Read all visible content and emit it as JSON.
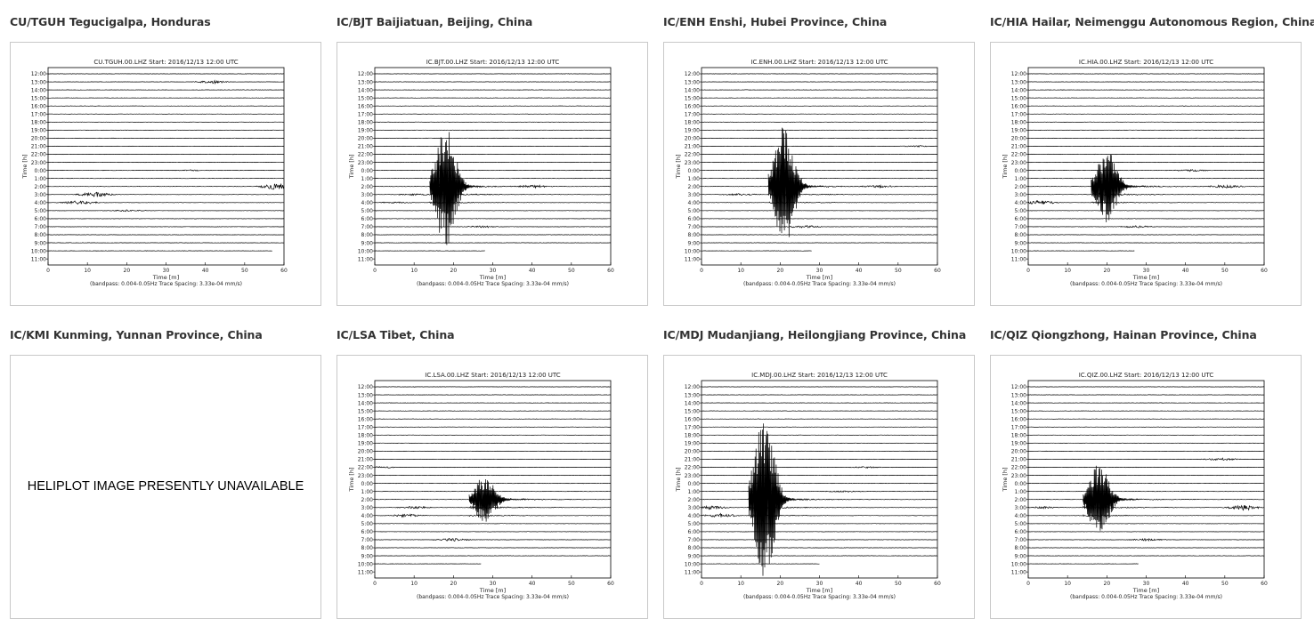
{
  "panels": [
    {
      "title": "CU/TGUH Tegucigalpa, Honduras",
      "available": true,
      "plot_title": "CU.TGUH.00.LHZ  Start: 2016/12/13 12:00 UTC",
      "y_axis_label": "Time [h]",
      "x_axis_label": "Time [m]",
      "footer": "(bandpass: 0.004-0.05Hz  Trace Spacing: 3.33e-04 mm/s)",
      "hour_labels": [
        "12:00",
        "13:00",
        "14:00",
        "15:00",
        "16:00",
        "17:00",
        "18:00",
        "19:00",
        "20:00",
        "21:00",
        "22:00",
        "23:00",
        "0:00",
        "1:00",
        "2:00",
        "3:00",
        "4:00",
        "5:00",
        "6:00",
        "7:00",
        "8:00",
        "9:00",
        "10:00",
        "11:00"
      ],
      "x_ticks": [
        "0",
        "10",
        "20",
        "30",
        "40",
        "50",
        "60"
      ],
      "chart_data": {
        "type": "heliplot",
        "x_range_minutes": [
          0,
          60
        ],
        "rows": 24,
        "data_ends_row": 22,
        "data_ends_minute": 57,
        "bursts": [
          {
            "row": 1,
            "minute": 42,
            "amp": 0.6
          },
          {
            "row": 12,
            "minute": 37,
            "amp": 0.2
          },
          {
            "row": 14,
            "minute": 58,
            "amp": 1.3
          },
          {
            "row": 15,
            "minute": 12,
            "amp": 1.0
          },
          {
            "row": 16,
            "minute": 8,
            "amp": 0.8
          },
          {
            "row": 17,
            "minute": 20,
            "amp": 0.3
          }
        ]
      }
    },
    {
      "title": "IC/BJT Baijiatuan, Beijing, China",
      "available": true,
      "plot_title": "IC.BJT.00.LHZ  Start: 2016/12/13 12:00 UTC",
      "y_axis_label": "Time [h]",
      "x_axis_label": "Time [m]",
      "footer": "(bandpass: 0.004-0.05Hz  Trace Spacing: 3.33e-04 mm/s)",
      "hour_labels": [
        "12:00",
        "13:00",
        "14:00",
        "15:00",
        "16:00",
        "17:00",
        "18:00",
        "19:00",
        "20:00",
        "21:00",
        "22:00",
        "23:00",
        "0:00",
        "1:00",
        "2:00",
        "3:00",
        "4:00",
        "5:00",
        "6:00",
        "7:00",
        "8:00",
        "9:00",
        "10:00",
        "11:00"
      ],
      "x_ticks": [
        "0",
        "10",
        "20",
        "30",
        "40",
        "50",
        "60"
      ],
      "chart_data": {
        "type": "heliplot",
        "x_range_minutes": [
          0,
          60
        ],
        "rows": 24,
        "data_ends_row": 22,
        "data_ends_minute": 28,
        "event": {
          "row": 14,
          "minute": 18,
          "amp": 10
        },
        "bursts": [
          {
            "row": 14,
            "minute": 40,
            "amp": 0.6
          },
          {
            "row": 15,
            "minute": 10,
            "amp": 0.4
          },
          {
            "row": 16,
            "minute": 5,
            "amp": 0.3
          },
          {
            "row": 19,
            "minute": 27,
            "amp": 0.4
          }
        ]
      }
    },
    {
      "title": "IC/ENH Enshi, Hubei Province, China",
      "available": true,
      "plot_title": "IC.ENH.00.LHZ  Start: 2016/12/13 12:00 UTC",
      "y_axis_label": "Time [h]",
      "x_axis_label": "Time [m]",
      "footer": "(bandpass: 0.004-0.05Hz  Trace Spacing: 3.33e-04 mm/s)",
      "hour_labels": [
        "12:00",
        "13:00",
        "14:00",
        "15:00",
        "16:00",
        "17:00",
        "18:00",
        "19:00",
        "20:00",
        "21:00",
        "22:00",
        "23:00",
        "0:00",
        "1:00",
        "2:00",
        "3:00",
        "4:00",
        "5:00",
        "6:00",
        "7:00",
        "8:00",
        "9:00",
        "10:00",
        "11:00"
      ],
      "x_ticks": [
        "0",
        "10",
        "20",
        "30",
        "40",
        "50",
        "60"
      ],
      "chart_data": {
        "type": "heliplot",
        "x_range_minutes": [
          0,
          60
        ],
        "rows": 24,
        "data_ends_row": 22,
        "data_ends_minute": 28,
        "event": {
          "row": 14,
          "minute": 21,
          "amp": 10
        },
        "bursts": [
          {
            "row": 9,
            "minute": 55,
            "amp": 0.3
          },
          {
            "row": 14,
            "minute": 45,
            "amp": 0.5
          },
          {
            "row": 15,
            "minute": 10,
            "amp": 0.4
          },
          {
            "row": 19,
            "minute": 26,
            "amp": 0.5
          }
        ]
      }
    },
    {
      "title": "IC/HIA Hailar, Neimenggu Autonomous Region, China",
      "available": true,
      "plot_title": "IC.HIA.00.LHZ  Start: 2016/12/13 12:00 UTC",
      "y_axis_label": "Time [h]",
      "x_axis_label": "Time [m]",
      "footer": "(bandpass: 0.004-0.05Hz  Trace Spacing: 3.33e-04 mm/s)",
      "hour_labels": [
        "12:00",
        "13:00",
        "14:00",
        "15:00",
        "16:00",
        "17:00",
        "18:00",
        "19:00",
        "20:00",
        "21:00",
        "22:00",
        "23:00",
        "0:00",
        "1:00",
        "2:00",
        "3:00",
        "4:00",
        "5:00",
        "6:00",
        "7:00",
        "8:00",
        "9:00",
        "10:00",
        "11:00"
      ],
      "x_ticks": [
        "0",
        "10",
        "20",
        "30",
        "40",
        "50",
        "60"
      ],
      "chart_data": {
        "type": "heliplot",
        "x_range_minutes": [
          0,
          60
        ],
        "rows": 24,
        "data_ends_row": 22,
        "data_ends_minute": 27,
        "event": {
          "row": 14,
          "minute": 20,
          "amp": 6
        },
        "bursts": [
          {
            "row": 12,
            "minute": 42,
            "amp": 0.4
          },
          {
            "row": 14,
            "minute": 50,
            "amp": 0.6
          },
          {
            "row": 16,
            "minute": 3,
            "amp": 0.8
          },
          {
            "row": 19,
            "minute": 28,
            "amp": 0.4
          }
        ]
      }
    },
    {
      "title": "IC/KMI Kunming, Yunnan Province, China",
      "available": false,
      "unavailable_text": "HELIPLOT IMAGE PRESENTLY UNAVAILABLE"
    },
    {
      "title": "IC/LSA Tibet, China",
      "available": true,
      "plot_title": "IC.LSA.00.LHZ  Start: 2016/12/13 12:00 UTC",
      "y_axis_label": "Time [h]",
      "x_axis_label": "Time [m]",
      "footer": "(bandpass: 0.004-0.05Hz  Trace Spacing: 3.33e-04 mm/s)",
      "hour_labels": [
        "12:00",
        "13:00",
        "14:00",
        "15:00",
        "16:00",
        "17:00",
        "18:00",
        "19:00",
        "20:00",
        "21:00",
        "22:00",
        "23:00",
        "0:00",
        "1:00",
        "2:00",
        "3:00",
        "4:00",
        "5:00",
        "6:00",
        "7:00",
        "8:00",
        "9:00",
        "10:00",
        "11:00"
      ],
      "x_ticks": [
        "0",
        "10",
        "20",
        "30",
        "40",
        "50",
        "60"
      ],
      "chart_data": {
        "type": "heliplot",
        "x_range_minutes": [
          0,
          60
        ],
        "rows": 24,
        "data_ends_row": 22,
        "data_ends_minute": 27,
        "event": {
          "row": 14,
          "minute": 28,
          "amp": 4
        },
        "bursts": [
          {
            "row": 10,
            "minute": 2,
            "amp": 0.3
          },
          {
            "row": 15,
            "minute": 10,
            "amp": 0.5
          },
          {
            "row": 16,
            "minute": 8,
            "amp": 0.6
          },
          {
            "row": 19,
            "minute": 20,
            "amp": 0.6
          }
        ]
      }
    },
    {
      "title": "IC/MDJ Mudanjiang, Heilongjiang Province, China",
      "available": true,
      "plot_title": "IC.MDJ.00.LHZ  Start: 2016/12/13 12:00 UTC",
      "y_axis_label": "Time [h]",
      "x_axis_label": "Time [m]",
      "footer": "(bandpass: 0.004-0.05Hz  Trace Spacing: 3.33e-04 mm/s)",
      "hour_labels": [
        "12:00",
        "13:00",
        "14:00",
        "15:00",
        "16:00",
        "17:00",
        "18:00",
        "19:00",
        "20:00",
        "21:00",
        "22:00",
        "23:00",
        "0:00",
        "1:00",
        "2:00",
        "3:00",
        "4:00",
        "5:00",
        "6:00",
        "7:00",
        "8:00",
        "9:00",
        "10:00",
        "11:00"
      ],
      "x_ticks": [
        "0",
        "10",
        "20",
        "30",
        "40",
        "50",
        "60"
      ],
      "chart_data": {
        "type": "heliplot",
        "x_range_minutes": [
          0,
          60
        ],
        "rows": 24,
        "data_ends_row": 22,
        "data_ends_minute": 30,
        "event": {
          "row": 14,
          "minute": 16,
          "amp": 14
        },
        "bursts": [
          {
            "row": 10,
            "minute": 42,
            "amp": 0.3
          },
          {
            "row": 13,
            "minute": 36,
            "amp": 0.3
          },
          {
            "row": 15,
            "minute": 2,
            "amp": 0.8
          },
          {
            "row": 16,
            "minute": 5,
            "amp": 0.8
          }
        ]
      }
    },
    {
      "title": "IC/QIZ Qiongzhong, Hainan Province, China",
      "available": true,
      "plot_title": "IC.QIZ.00.LHZ  Start: 2016/12/13 12:00 UTC",
      "y_axis_label": "Time [h]",
      "x_axis_label": "Time [m]",
      "footer": "(bandpass: 0.004-0.05Hz  Trace Spacing: 3.33e-04 mm/s)",
      "hour_labels": [
        "12:00",
        "13:00",
        "14:00",
        "15:00",
        "16:00",
        "17:00",
        "18:00",
        "19:00",
        "20:00",
        "21:00",
        "22:00",
        "23:00",
        "0:00",
        "1:00",
        "2:00",
        "3:00",
        "4:00",
        "5:00",
        "6:00",
        "7:00",
        "8:00",
        "9:00",
        "10:00",
        "11:00"
      ],
      "x_ticks": [
        "0",
        "10",
        "20",
        "30",
        "40",
        "50",
        "60"
      ],
      "chart_data": {
        "type": "heliplot",
        "x_range_minutes": [
          0,
          60
        ],
        "rows": 24,
        "data_ends_row": 22,
        "data_ends_minute": 28,
        "event": {
          "row": 14,
          "minute": 18,
          "amp": 6
        },
        "bursts": [
          {
            "row": 9,
            "minute": 49,
            "amp": 0.5
          },
          {
            "row": 15,
            "minute": 4,
            "amp": 0.4
          },
          {
            "row": 15,
            "minute": 55,
            "amp": 1.0
          },
          {
            "row": 19,
            "minute": 30,
            "amp": 0.4
          }
        ]
      }
    }
  ]
}
